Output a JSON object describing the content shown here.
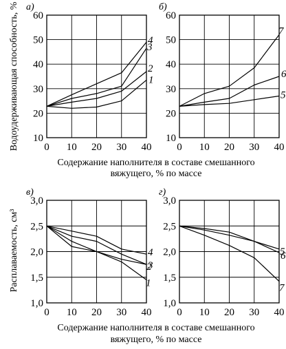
{
  "figure": {
    "ylabel_top": "Водоудерживающая способность, %",
    "ylabel_bottom": "Расплаваемость, см³",
    "xlabel_line1": "Содержание наполнителя в составе смешанного",
    "xlabel_line2": "вяжущего, % по массе"
  },
  "chart_data": [
    {
      "type": "line",
      "panel": "а)",
      "xlim": [
        0,
        40
      ],
      "ylim": [
        10,
        60
      ],
      "xticks": [
        0,
        10,
        20,
        30,
        40
      ],
      "yticks": [
        10,
        20,
        30,
        40,
        50,
        60
      ],
      "xtick_labels": [
        "0",
        "10",
        "20",
        "30",
        "40"
      ],
      "ytick_labels": [
        "10",
        "20",
        "30",
        "40",
        "50",
        "60"
      ],
      "x": [
        0,
        10,
        20,
        30,
        40
      ],
      "series": [
        {
          "name": "1",
          "values": [
            22.8,
            22.0,
            22.5,
            25.0,
            33.5
          ]
        },
        {
          "name": "2",
          "values": [
            22.8,
            24.5,
            26.0,
            29.0,
            37.0
          ]
        },
        {
          "name": "3",
          "values": [
            22.8,
            26.0,
            28.0,
            31.0,
            46.5
          ]
        },
        {
          "name": "4",
          "values": [
            22.8,
            27.5,
            32.0,
            36.5,
            49.0
          ]
        }
      ]
    },
    {
      "type": "line",
      "panel": "б)",
      "xlim": [
        0,
        40
      ],
      "ylim": [
        10,
        60
      ],
      "xticks": [
        0,
        10,
        20,
        30,
        40
      ],
      "yticks": [
        10,
        20,
        30,
        40,
        50,
        60
      ],
      "xtick_labels": [
        "0",
        "10",
        "20",
        "30",
        "40"
      ],
      "ytick_labels": [
        "10",
        "20",
        "30",
        "40",
        "50",
        "60"
      ],
      "x": [
        0,
        10,
        20,
        30,
        40
      ],
      "series": [
        {
          "name": "5",
          "values": [
            22.8,
            23.5,
            24.0,
            25.5,
            27.0
          ]
        },
        {
          "name": "6",
          "values": [
            22.8,
            24.5,
            26.0,
            31.5,
            35.0
          ]
        },
        {
          "name": "7",
          "values": [
            22.8,
            28.0,
            31.0,
            38.5,
            52.0
          ]
        }
      ]
    },
    {
      "type": "line",
      "panel": "в)",
      "xlim": [
        0,
        40
      ],
      "ylim": [
        1.0,
        3.0
      ],
      "xticks": [
        0,
        10,
        20,
        30,
        40
      ],
      "yticks": [
        1.0,
        1.5,
        2.0,
        2.5,
        3.0
      ],
      "xtick_labels": [
        "0",
        "10",
        "20",
        "30",
        "40"
      ],
      "ytick_labels": [
        "1,0",
        "1,5",
        "2,0",
        "2,5",
        "3,0"
      ],
      "x": [
        0,
        10,
        20,
        30,
        40
      ],
      "series": [
        {
          "name": "1",
          "values": [
            2.5,
            2.1,
            2.0,
            1.8,
            1.45
          ]
        },
        {
          "name": "2",
          "values": [
            2.5,
            2.2,
            2.0,
            1.85,
            1.75
          ]
        },
        {
          "name": "3",
          "values": [
            2.5,
            2.3,
            2.2,
            1.95,
            1.75
          ]
        },
        {
          "name": "4",
          "values": [
            2.5,
            2.4,
            2.3,
            2.05,
            1.95
          ]
        }
      ]
    },
    {
      "type": "line",
      "panel": "г)",
      "xlim": [
        0,
        40
      ],
      "ylim": [
        1.0,
        3.0
      ],
      "xticks": [
        0,
        10,
        20,
        30,
        40
      ],
      "yticks": [
        1.0,
        1.5,
        2.0,
        2.5,
        3.0
      ],
      "xtick_labels": [
        "0",
        "10",
        "20",
        "30",
        "40"
      ],
      "ytick_labels": [
        "1,0",
        "1,5",
        "2,0",
        "2,5",
        "3,0"
      ],
      "x": [
        0,
        10,
        20,
        30,
        40
      ],
      "series": [
        {
          "name": "5",
          "values": [
            2.5,
            2.45,
            2.38,
            2.2,
            2.05
          ]
        },
        {
          "name": "6",
          "values": [
            2.5,
            2.42,
            2.32,
            2.2,
            1.98
          ]
        },
        {
          "name": "7",
          "values": [
            2.5,
            2.32,
            2.12,
            1.88,
            1.42
          ]
        }
      ]
    }
  ]
}
